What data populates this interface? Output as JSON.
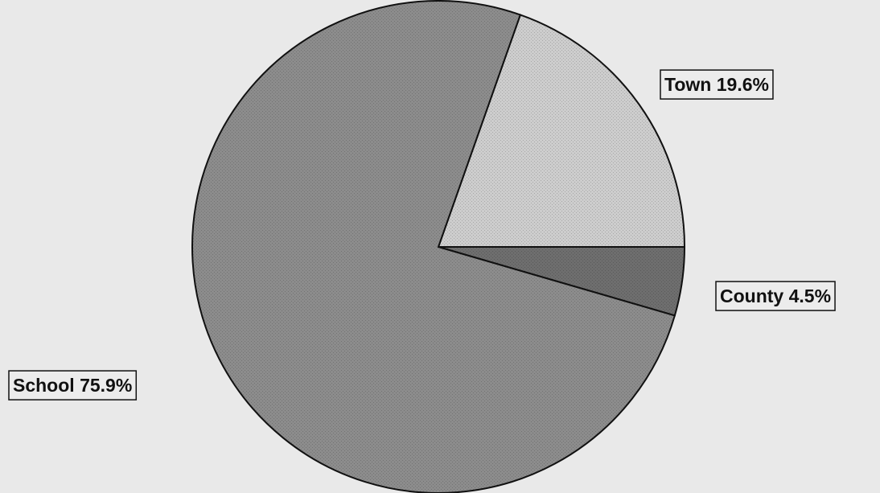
{
  "chart_data": {
    "type": "pie",
    "categories": [
      "Town",
      "County",
      "School"
    ],
    "values": [
      19.6,
      4.5,
      75.9
    ],
    "value_labels": [
      "19.6%",
      "4.5%",
      "75.9%"
    ],
    "colors": [
      "#cdcdcd",
      "#6e6e6e",
      "#8c8c8c"
    ]
  }
}
